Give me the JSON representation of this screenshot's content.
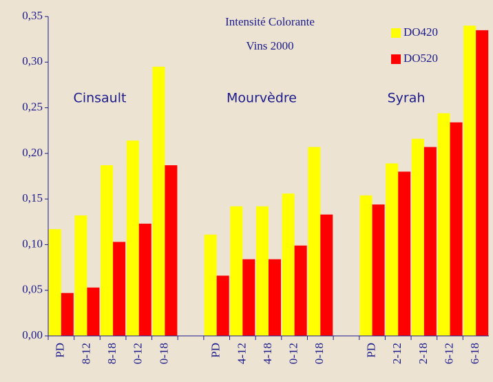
{
  "chart_data": {
    "type": "bar",
    "title": "Intensité Colorante",
    "subtitle": "Vins 2000",
    "annotations": [
      "Cinsault",
      "Mourvèdre",
      "Syrah"
    ],
    "categories": [
      "PD",
      "8-12",
      "8-18",
      "0-12",
      "0-18",
      null,
      "PD",
      "4-12",
      "4-18",
      "0-12",
      "0-18",
      null,
      "PD",
      "2-12",
      "2-18",
      "6-12",
      "6-18"
    ],
    "series": [
      {
        "name": "DO420",
        "color": "#ffff00",
        "values": [
          0.117,
          0.132,
          0.187,
          0.214,
          0.295,
          null,
          0.111,
          0.142,
          0.142,
          0.156,
          0.207,
          null,
          0.154,
          0.189,
          0.216,
          0.244,
          0.34
        ]
      },
      {
        "name": "DO520",
        "color": "#ff0000",
        "values": [
          0.047,
          0.053,
          0.103,
          0.123,
          0.187,
          null,
          0.066,
          0.084,
          0.084,
          0.099,
          0.133,
          null,
          0.144,
          0.18,
          0.207,
          0.234,
          0.335
        ]
      }
    ],
    "ylim": [
      0,
      0.35
    ],
    "yticks": [
      {
        "value": 0,
        "label": "0,00"
      },
      {
        "value": 0.05,
        "label": "0,05"
      },
      {
        "value": 0.1,
        "label": "0,10"
      },
      {
        "value": 0.15,
        "label": "0,15"
      },
      {
        "value": 0.2,
        "label": "0,20"
      },
      {
        "value": 0.25,
        "label": "0,25"
      },
      {
        "value": 0.3,
        "label": "0,30"
      },
      {
        "value": 0.35,
        "label": "0,35"
      }
    ],
    "legend": "top-right"
  }
}
